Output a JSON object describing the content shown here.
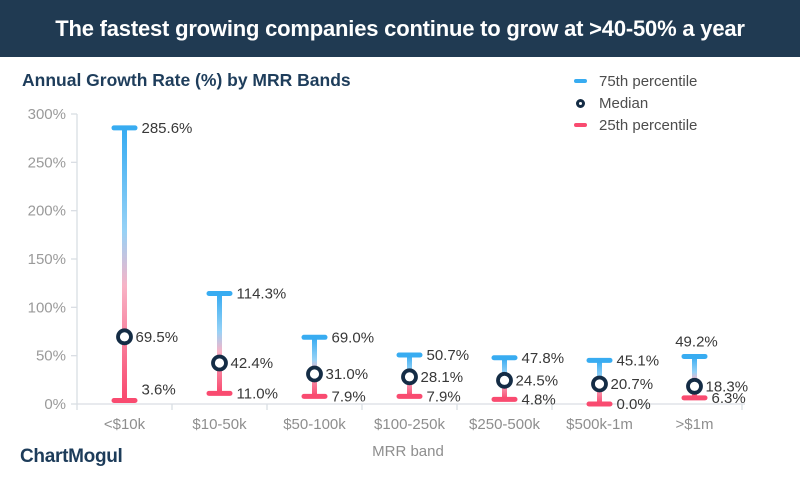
{
  "banner": {
    "text": "The fastest growing companies continue to grow at >40-50% a year",
    "bg_color": "#203a52"
  },
  "chart": {
    "title": "Annual Growth Rate (%) by MRR Bands"
  },
  "legend": {
    "items": [
      {
        "label": "75th percentile",
        "marker": "dash",
        "color": "#38acf1"
      },
      {
        "label": "Median",
        "marker": "ring",
        "color": "#142c45"
      },
      {
        "label": "25th percentile",
        "marker": "dash",
        "color": "#f94b70"
      }
    ]
  },
  "chart_data": {
    "type": "bar",
    "variant": "percentile-range",
    "title": "Annual Growth Rate (%) by MRR Bands",
    "categories": [
      "<$10k",
      "$10-50k",
      "$50-100k",
      "$100-250k",
      "$250-500k",
      "$500k-1m",
      ">$1m"
    ],
    "series": [
      {
        "name": "75th percentile",
        "values": [
          285.6,
          114.3,
          69.0,
          50.7,
          47.8,
          45.1,
          49.2
        ]
      },
      {
        "name": "Median",
        "values": [
          69.5,
          42.4,
          31.0,
          28.1,
          24.5,
          20.7,
          18.3
        ]
      },
      {
        "name": "25th percentile",
        "values": [
          3.6,
          11.0,
          7.9,
          7.9,
          4.8,
          0.0,
          6.3
        ]
      }
    ],
    "xlabel": "MRR band",
    "ylabel": "",
    "ylim": [
      0,
      300
    ],
    "yticks": [
      "0%",
      "50%",
      "100%",
      "150%",
      "200%",
      "250%",
      "300%"
    ],
    "grid": false,
    "legend_position": "top-right"
  },
  "colors": {
    "p75": "#38acf1",
    "p25": "#f94b70",
    "median_ring": "#142c45",
    "axis_line": "#d9dee3",
    "tick_text": "#9a9a9a",
    "value_text": "#383838"
  },
  "footer": {
    "logo_text": "ChartMogul"
  }
}
